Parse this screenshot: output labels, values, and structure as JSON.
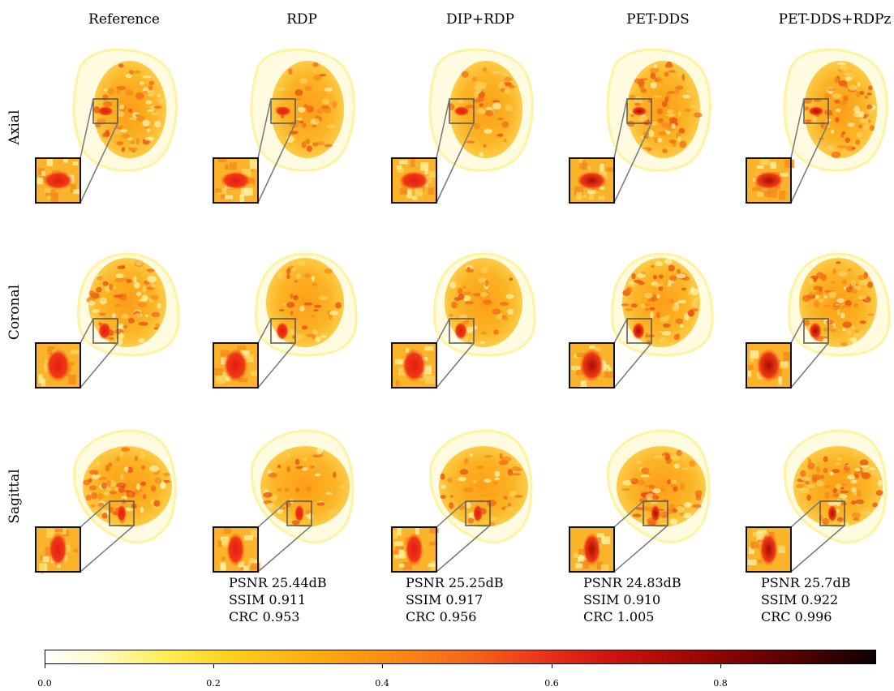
{
  "columns": [
    "Reference",
    "RDP",
    "DIP+RDP",
    "PET-DDS",
    "PET-DDS+RDPz"
  ],
  "rows": [
    "Axial",
    "Coronal",
    "Sagittal"
  ],
  "metrics": [
    {
      "psnr": "PSNR 25.44dB",
      "ssim": "SSIM 0.911",
      "crc": "CRC 0.953"
    },
    {
      "psnr": "PSNR 25.25dB",
      "ssim": "SSIM 0.917",
      "crc": "CRC 0.956"
    },
    {
      "psnr": "PSNR 24.83dB",
      "ssim": "SSIM 0.910",
      "crc": "CRC 1.005"
    },
    {
      "psnr": "PSNR 25.7dB",
      "ssim": "SSIM 0.922",
      "crc": "CRC 0.996"
    }
  ],
  "colorbar": {
    "ticks": [
      "0.0",
      "0.2",
      "0.4",
      "0.6",
      "0.8"
    ],
    "range": [
      0.0,
      0.985
    ],
    "colormap": "hot (reversed)",
    "colors": {
      "low": "#ffffff",
      "mid": "#f4621a",
      "high": "#0d0000"
    }
  }
}
